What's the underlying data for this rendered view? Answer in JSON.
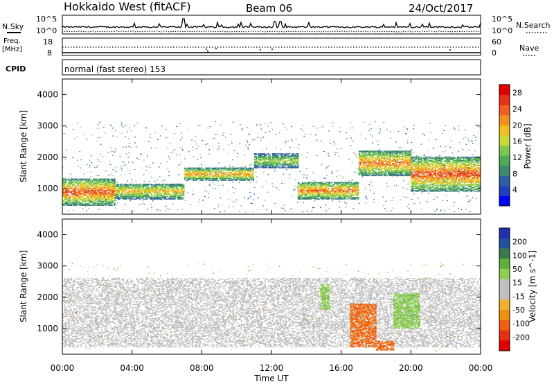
{
  "header": {
    "station": "Hokkaido West (fitACF)",
    "beam": "Beam 06",
    "date": "24/Oct/2017"
  },
  "top_panel": {
    "nsky_label": "N.Sky",
    "nsearch_label": "N.Search",
    "noise_tick_high": "10^5",
    "noise_tick_low": "10^0",
    "freq_label_1": "Freq.",
    "freq_label_2": "[MHz]",
    "freq_tick_high": "18",
    "freq_tick_low": "8",
    "nave_label": "Nave",
    "nave_tick_high": "60",
    "nave_tick_low": "0",
    "cpid_label": "CPID",
    "cpid_text": "normal (fast stereo) 153"
  },
  "chart_data": [
    {
      "type": "heatmap",
      "name": "power",
      "xlabel": "Time UT",
      "ylabel": "Slant Range [km]",
      "xlim": [
        0,
        24
      ],
      "ylim": [
        180,
        4500
      ],
      "xticks": [
        "00:00",
        "04:00",
        "08:00",
        "12:00",
        "16:00",
        "20:00",
        "00:00"
      ],
      "yticks": [
        "1000",
        "2000",
        "3000",
        "4000"
      ],
      "ytick_values": [
        1000,
        2000,
        3000,
        4000
      ],
      "colorbar": {
        "label": "Power [dB]",
        "ticks": [
          "28",
          "24",
          "20",
          "16",
          "12",
          "8",
          "4"
        ],
        "range": [
          0,
          30
        ],
        "colors": [
          "#0000ff",
          "#1f3fbf",
          "#2f5fa0",
          "#3d8a6a",
          "#4caa5a",
          "#7cc850",
          "#c8d838",
          "#f0c020",
          "#f09020",
          "#f06020",
          "#e83018",
          "#e00000"
        ]
      },
      "features": [
        {
          "t": [
            0,
            3
          ],
          "range_km": [
            450,
            1300
          ],
          "power_db": 26
        },
        {
          "t": [
            3,
            7
          ],
          "range_km": [
            650,
            1150
          ],
          "power_db": 20
        },
        {
          "t": [
            7,
            11
          ],
          "range_km": [
            1250,
            1650
          ],
          "power_db": 22
        },
        {
          "t": [
            11,
            13.5
          ],
          "range_km": [
            1650,
            2100
          ],
          "power_db": 16
        },
        {
          "t": [
            13.5,
            17
          ],
          "range_km": [
            650,
            1200
          ],
          "power_db": 24
        },
        {
          "t": [
            17,
            20
          ],
          "range_km": [
            1400,
            2200
          ],
          "power_db": 24
        },
        {
          "t": [
            20,
            24
          ],
          "range_km": [
            900,
            2000
          ],
          "power_db": 26
        }
      ]
    },
    {
      "type": "heatmap",
      "name": "velocity",
      "xlabel": "Time UT",
      "ylabel": "Slant Range [km]",
      "xlim": [
        0,
        24
      ],
      "ylim": [
        180,
        4500
      ],
      "xticks": [
        "00:00",
        "04:00",
        "08:00",
        "12:00",
        "16:00",
        "20:00",
        "00:00"
      ],
      "yticks": [
        "1000",
        "2000",
        "3000",
        "4000"
      ],
      "ytick_values": [
        1000,
        2000,
        3000,
        4000
      ],
      "colorbar": {
        "label": "Velocity [m s^-1]",
        "ticks": [
          "200",
          "100",
          "50",
          "15",
          "-15",
          "-50",
          "-100",
          "-200"
        ],
        "colors": [
          "#2030b0",
          "#2050a0",
          "#3a7a4a",
          "#60b040",
          "#90d050",
          "#c0c0c0",
          "#c0c0c0",
          "#f0b030",
          "#f09010",
          "#f06010",
          "#e83010",
          "#e00000"
        ]
      },
      "features": [
        {
          "t": [
            0,
            24
          ],
          "range_km": [
            400,
            2600
          ],
          "velocity_ms": 0
        },
        {
          "t": [
            16.5,
            18
          ],
          "range_km": [
            400,
            1800
          ],
          "velocity_ms": -60
        },
        {
          "t": [
            18,
            19
          ],
          "range_km": [
            300,
            600
          ],
          "velocity_ms": -60
        },
        {
          "t": [
            14.8,
            15.3
          ],
          "range_km": [
            1600,
            2400
          ],
          "velocity_ms": 40
        },
        {
          "t": [
            19,
            20.5
          ],
          "range_km": [
            1000,
            2100
          ],
          "velocity_ms": 40
        }
      ]
    }
  ]
}
